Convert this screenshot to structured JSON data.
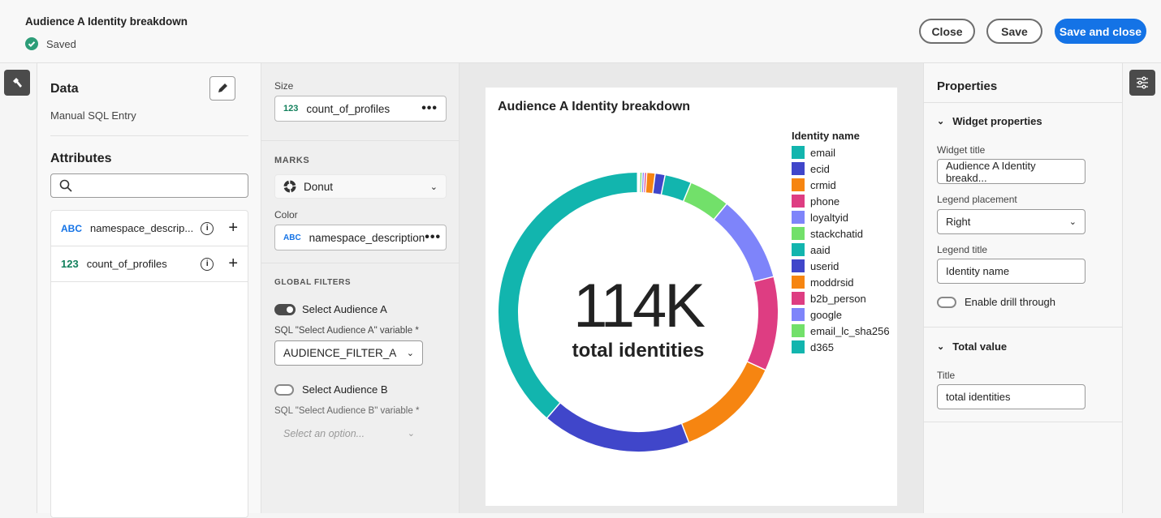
{
  "header": {
    "title": "Audience A Identity breakdown",
    "status": "Saved",
    "close": "Close",
    "save": "Save",
    "save_close": "Save and close"
  },
  "data_panel": {
    "title": "Data",
    "source": "Manual SQL Entry",
    "attributes_title": "Attributes",
    "search_placeholder": "",
    "attributes": [
      {
        "type": "ABC",
        "name": "namespace_descrip..."
      },
      {
        "type": "123",
        "name": "count_of_profiles"
      }
    ]
  },
  "encoding": {
    "size_label": "Size",
    "size_type": "123",
    "size_value": "count_of_profiles",
    "marks_label": "MARKS",
    "marks_value": "Donut",
    "color_label": "Color",
    "color_type": "ABC",
    "color_value": "namespace_description",
    "global_filters": "GLOBAL FILTERS",
    "filter_a": "Select Audience A",
    "filter_a_var": "SQL \"Select Audience A\" variable",
    "filter_a_value": "AUDIENCE_FILTER_A",
    "filter_b": "Select Audience B",
    "filter_b_var": "SQL \"Select Audience B\" variable",
    "filter_b_placeholder": "Select an option...",
    "required": "*"
  },
  "chart_data": {
    "type": "pie",
    "title": "Audience A Identity breakdown",
    "center_value": "114K",
    "center_label": "total identities",
    "legend_title": "Identity name",
    "legend_placement": "right",
    "categories": [
      "email",
      "ecid",
      "crmid",
      "phone",
      "loyaltyid",
      "stackchatid",
      "aaid",
      "userid",
      "moddrsid",
      "b2b_person",
      "google",
      "email_lc_sha256",
      "d365"
    ],
    "values": [
      44000,
      19600,
      14000,
      12400,
      11400,
      5400,
      3500,
      1300,
      1100,
      300,
      300,
      300,
      300
    ],
    "colors": [
      "#12b5ae",
      "#4046ca",
      "#f68511",
      "#de3d82",
      "#7e84fa",
      "#72e06a",
      "#12b5ae",
      "#4046ca",
      "#f68511",
      "#de3d82",
      "#7e84fa",
      "#72e06a",
      "#12b5ae"
    ]
  },
  "properties": {
    "title": "Properties",
    "widget_section": "Widget properties",
    "widget_title_label": "Widget title",
    "widget_title_value": "Audience A Identity breakd...",
    "legend_placement_label": "Legend placement",
    "legend_placement_value": "Right",
    "legend_title_label": "Legend title",
    "legend_title_value": "Identity name",
    "drill": "Enable drill through",
    "total_section": "Total value",
    "total_title_label": "Title",
    "total_title_value": "total identities"
  }
}
